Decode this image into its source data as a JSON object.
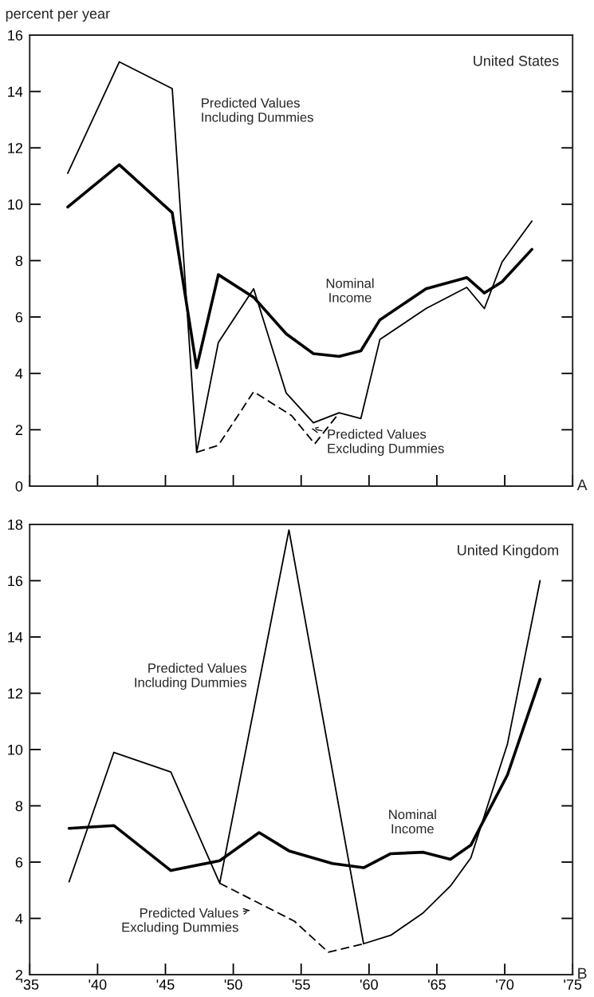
{
  "chart_data": [
    {
      "type": "line",
      "title": "United States",
      "ylabel": "percent per year",
      "annotations": [
        "A"
      ],
      "xlim": [
        1935,
        1975
      ],
      "ylim": [
        0,
        16
      ],
      "tick_labels": "y",
      "xticks": [
        {
          "value": 1935,
          "label": null
        },
        {
          "value": 1940,
          "label": null
        },
        {
          "value": 1945,
          "label": null
        },
        {
          "value": 1950,
          "label": null
        },
        {
          "value": 1955,
          "label": null
        },
        {
          "value": 1960,
          "label": null
        },
        {
          "value": 1965,
          "label": null
        },
        {
          "value": 1970,
          "label": null
        },
        {
          "value": 1975,
          "label": null
        }
      ],
      "yticks": [
        0,
        2,
        4,
        6,
        8,
        10,
        12,
        14,
        16
      ],
      "series": [
        {
          "name": "Nominal\nIncome",
          "color": "#000000",
          "line_style": "solid",
          "x": [
            1937.8,
            1941.6,
            1945.5,
            1947.3,
            1948.9,
            1951.5,
            1953.9,
            1955.9,
            1957.8,
            1959.4,
            1960.8,
            1964.2,
            1967.2,
            1968.5,
            1969.8,
            1972.0
          ],
          "values": [
            9.9,
            11.4,
            9.7,
            4.2,
            7.5,
            6.7,
            5.4,
            4.7,
            4.6,
            4.8,
            5.9,
            7.0,
            7.4,
            6.85,
            7.25,
            8.4
          ]
        },
        {
          "name": "Predicted Values\nIncluding Dummies",
          "color": "#000000",
          "line_style": "solid",
          "x": [
            1937.8,
            1941.6,
            1945.5,
            1947.3,
            1948.9,
            1951.5,
            1953.9,
            1955.9,
            1957.8,
            1959.4,
            1960.8,
            1964.2,
            1967.2,
            1968.5,
            1969.8,
            1972.0
          ],
          "values": [
            11.1,
            15.05,
            14.1,
            1.2,
            5.1,
            7.0,
            3.3,
            2.25,
            2.6,
            2.4,
            5.2,
            6.3,
            7.05,
            6.3,
            7.95,
            9.4
          ]
        },
        {
          "name": "Predicted Values\nExcluding Dummies",
          "color": "#000000",
          "line_style": "dashed",
          "x": [
            1947.3,
            1948.9,
            1951.5,
            1954.3,
            1956.0,
            1957.8
          ],
          "values": [
            1.2,
            1.45,
            3.35,
            2.5,
            1.5,
            2.6
          ]
        }
      ]
    },
    {
      "type": "line",
      "title": "United Kingdom",
      "annotations": [
        "B"
      ],
      "xlim": [
        1935,
        1975
      ],
      "ylim": [
        2,
        18
      ],
      "xticks": [
        {
          "value": 1935,
          "label": "'35"
        },
        {
          "value": 1940,
          "label": "'40"
        },
        {
          "value": 1945,
          "label": "'45"
        },
        {
          "value": 1950,
          "label": "'50"
        },
        {
          "value": 1955,
          "label": "'55"
        },
        {
          "value": 1960,
          "label": "'60"
        },
        {
          "value": 1965,
          "label": "'65"
        },
        {
          "value": 1970,
          "label": "'70"
        },
        {
          "value": 1975,
          "label": "'75"
        }
      ],
      "yticks": [
        2,
        4,
        6,
        8,
        10,
        12,
        14,
        16,
        18
      ],
      "series": [
        {
          "name": "Nominal\nIncome",
          "color": "#000000",
          "line_style": "solid",
          "x": [
            1937.9,
            1941.2,
            1945.4,
            1949.0,
            1951.9,
            1954.1,
            1957.3,
            1959.6,
            1961.6,
            1964.0,
            1966.0,
            1967.5,
            1970.2,
            1972.6
          ],
          "values": [
            7.2,
            7.3,
            5.7,
            6.05,
            7.05,
            6.4,
            5.95,
            5.8,
            6.3,
            6.35,
            6.1,
            6.6,
            9.1,
            12.5
          ]
        },
        {
          "name": "Predicted Values\nIncluding Dummies",
          "color": "#000000",
          "line_style": "solid",
          "x": [
            1937.9,
            1941.2,
            1945.4,
            1949.0,
            1954.1,
            1959.6,
            1961.6,
            1964.0,
            1966.0,
            1967.5,
            1970.2,
            1972.6
          ],
          "values": [
            5.3,
            9.9,
            9.2,
            5.25,
            17.8,
            3.1,
            3.4,
            4.2,
            5.15,
            6.15,
            10.2,
            16.0
          ]
        },
        {
          "name": "Predicted Values\nExcluding Dummies",
          "color": "#000000",
          "line_style": "dashed",
          "x": [
            1949.0,
            1954.5,
            1957.0,
            1959.6
          ],
          "values": [
            5.25,
            3.9,
            2.8,
            3.1
          ]
        }
      ]
    }
  ]
}
